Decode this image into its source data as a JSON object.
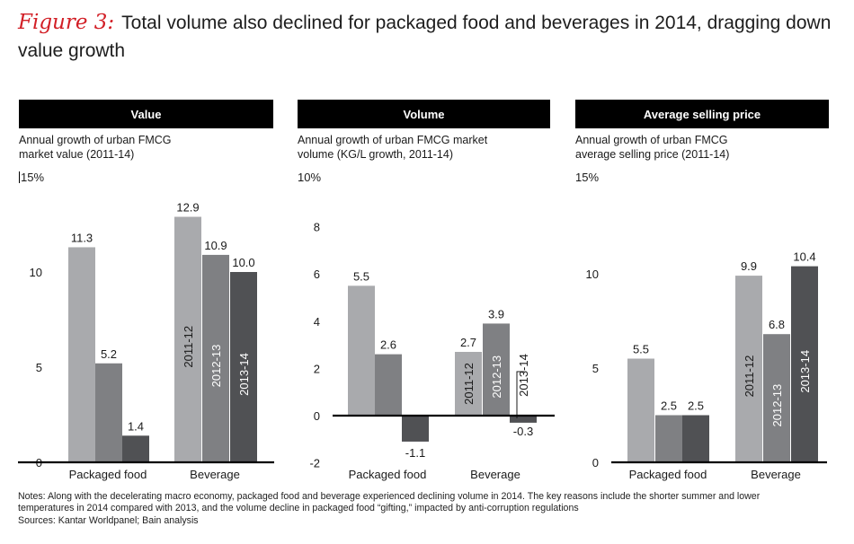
{
  "figure": {
    "label": "Figure 3:",
    "title": "Total volume also declined for packaged food and beverages in 2014, dragging down value growth"
  },
  "panels": [
    {
      "header": "Value",
      "subtitle_lines": [
        "Annual growth of urban FMCG",
        "market value (2011-14)"
      ],
      "unit_label": "15%"
    },
    {
      "header": "Volume",
      "subtitle_lines": [
        "Annual growth of urban FMCG market",
        "volume (KG/L growth, 2011-14)"
      ],
      "unit_label": "10%"
    },
    {
      "header": "Average selling price",
      "subtitle_lines": [
        "Annual growth of urban FMCG",
        "average selling price (2011-14)"
      ],
      "unit_label": "15%"
    }
  ],
  "chart_data": [
    {
      "type": "bar",
      "title": "Value",
      "ylabel": "15%",
      "categories": [
        "Packaged food",
        "Beverage"
      ],
      "series": [
        {
          "name": "2011-12",
          "values": [
            11.3,
            12.9
          ]
        },
        {
          "name": "2012-13",
          "values": [
            5.2,
            10.9
          ]
        },
        {
          "name": "2013-14",
          "values": [
            1.4,
            10.0
          ]
        }
      ],
      "ylim": [
        0,
        15
      ],
      "yticks": [
        0,
        5,
        10
      ],
      "legend": "inside-beverage-bars"
    },
    {
      "type": "bar",
      "title": "Volume",
      "ylabel": "10%",
      "categories": [
        "Packaged food",
        "Beverage"
      ],
      "series": [
        {
          "name": "2011-12",
          "values": [
            5.5,
            2.7
          ]
        },
        {
          "name": "2012-13",
          "values": [
            2.6,
            3.9
          ]
        },
        {
          "name": "2013-14",
          "values": [
            -1.1,
            -0.3
          ]
        }
      ],
      "ylim": [
        -2,
        10
      ],
      "yticks": [
        -2,
        0,
        2,
        4,
        6,
        8
      ],
      "legend": "inside-beverage-bars"
    },
    {
      "type": "bar",
      "title": "Average selling price",
      "ylabel": "15%",
      "categories": [
        "Packaged food",
        "Beverage"
      ],
      "series": [
        {
          "name": "2011-12",
          "values": [
            5.5,
            9.9
          ]
        },
        {
          "name": "2012-13",
          "values": [
            2.5,
            6.8
          ]
        },
        {
          "name": "2013-14",
          "values": [
            2.5,
            10.4
          ]
        }
      ],
      "ylim": [
        0,
        15
      ],
      "yticks": [
        0,
        5,
        10
      ],
      "legend": "inside-beverage-bars"
    }
  ],
  "colors": {
    "series": [
      "#a9aaad",
      "#7f8083",
      "#505154"
    ],
    "axis": "#000000",
    "header_bg": "#000000"
  },
  "notes": [
    "Notes: Along with the decelerating macro economy, packaged food and beverage experienced declining volume in 2014. The key reasons include the shorter summer and lower",
    "temperatures in 2014 compared with 2013, and the volume decline in packaged food “gifting,” impacted by anti-corruption regulations",
    "Sources: Kantar Worldpanel; Bain analysis"
  ]
}
